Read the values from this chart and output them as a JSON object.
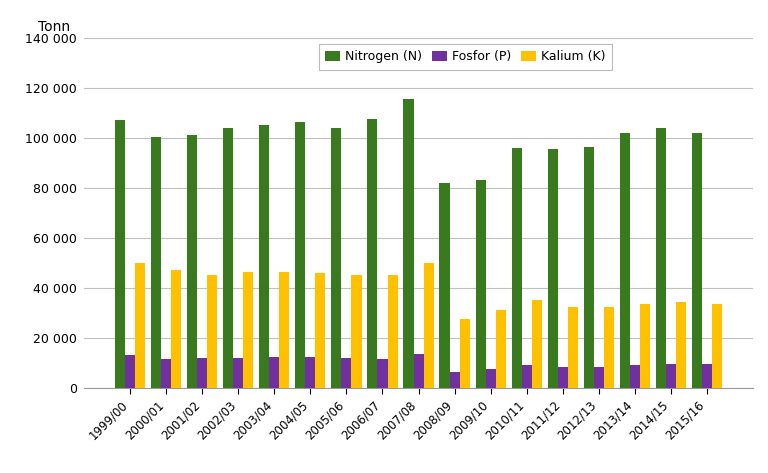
{
  "categories": [
    "1999/00",
    "2000/01",
    "2001/02",
    "2002/03",
    "2003/04",
    "2004/05",
    "2005/06",
    "2006/07",
    "2007/08",
    "2008/09",
    "2009/10",
    "2010/11",
    "2011/12",
    "2012/13",
    "2013/14",
    "2014/15",
    "2015/16"
  ],
  "nitrogen": [
    107000,
    100500,
    101000,
    104000,
    105000,
    106500,
    104000,
    107500,
    115500,
    82000,
    83000,
    96000,
    95500,
    96500,
    102000,
    104000,
    102000
  ],
  "fosfor": [
    13000,
    11500,
    12000,
    12000,
    12500,
    12500,
    12000,
    11500,
    13500,
    6500,
    7500,
    9000,
    8500,
    8500,
    9000,
    9500,
    9500
  ],
  "kalium": [
    50000,
    47000,
    45000,
    46500,
    46500,
    46000,
    45000,
    45000,
    50000,
    27500,
    31000,
    35000,
    32500,
    32500,
    33500,
    34500,
    33500
  ],
  "nitrogen_color": "#3a7a1e",
  "fosfor_color": "#7030a0",
  "kalium_color": "#ffc000",
  "ylabel": "Tonn",
  "ylim": [
    0,
    140000
  ],
  "yticks": [
    0,
    20000,
    40000,
    60000,
    80000,
    100000,
    120000,
    140000
  ],
  "legend_labels": [
    "Nitrogen (N)",
    "Fosfor (P)",
    "Kalium (K)"
  ],
  "background_color": "#ffffff",
  "grid_color": "#c0c0c0",
  "bar_width": 0.28,
  "figsize": [
    7.68,
    4.73
  ],
  "dpi": 100
}
